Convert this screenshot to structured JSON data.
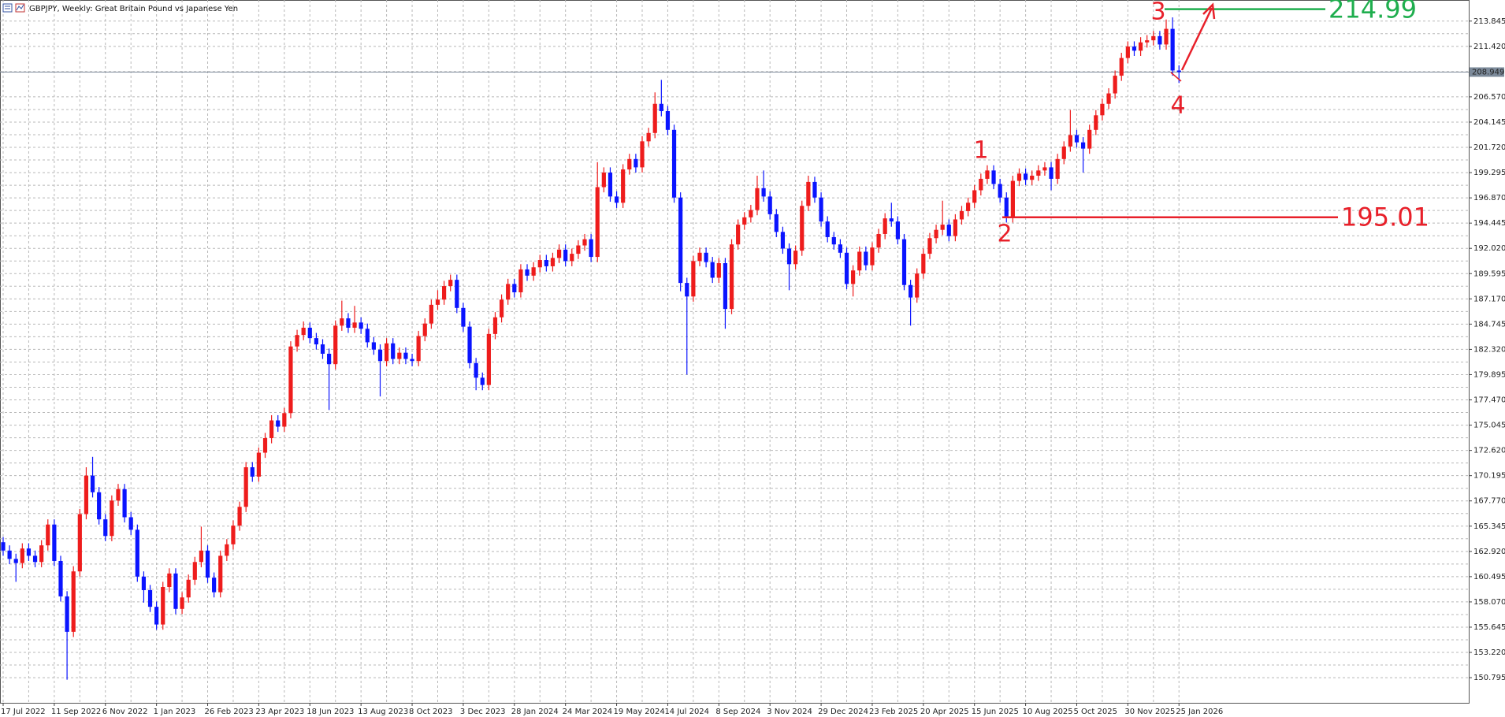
{
  "chart_data": {
    "type": "candlestick",
    "title": "GBPJPY, Weekly:  Great Britain Pound vs Japanese Yen",
    "up_color": "#ee1c1c",
    "down_color": "#0a14ff",
    "grid": true,
    "ylim": [
      148.38,
      215.87
    ],
    "yticks": [
      150.795,
      {
        "value": 153.22,
        "label": "153.220"
      },
      155.645,
      {
        "value": 158.07,
        "label": "158.070"
      },
      160.495,
      {
        "value": 162.92,
        "label": "162.920"
      },
      165.345,
      {
        "value": 167.77,
        "label": "167.770"
      },
      170.195,
      {
        "value": 172.62,
        "label": "172.620"
      },
      175.045,
      {
        "value": 177.47,
        "label": "177.470"
      },
      179.895,
      {
        "value": 182.32,
        "label": "182.320"
      },
      184.745,
      {
        "value": 187.17,
        "label": "187.170"
      },
      189.595,
      {
        "value": 192.02,
        "label": "192.020"
      },
      194.445,
      {
        "value": 196.87,
        "label": "196.870"
      },
      199.295,
      {
        "value": 201.72,
        "label": "201.720"
      },
      204.145,
      {
        "value": 206.57,
        "label": "206.570"
      },
      {
        "value": 211.42,
        "label": "211.420"
      },
      213.845
    ],
    "last_price": 208.949,
    "last_price_color": "#7c8a9a",
    "levels": [
      {
        "value": 195.01,
        "color": "#e8202a"
      },
      {
        "value": 214.99,
        "color": "#1fae4e"
      }
    ],
    "annotations": [
      "1",
      "2",
      "3",
      "4"
    ],
    "categories": [
      "17 Jul 2022",
      null,
      null,
      null,
      null,
      null,
      null,
      null,
      "11 Sep 2022",
      null,
      null,
      null,
      null,
      null,
      null,
      null,
      "6 Nov 2022",
      null,
      null,
      null,
      null,
      null,
      null,
      null,
      "1 Jan 2023",
      null,
      null,
      null,
      null,
      null,
      null,
      null,
      "26 Feb 2023",
      null,
      null,
      null,
      null,
      null,
      null,
      null,
      "23 Apr 2023",
      null,
      null,
      null,
      null,
      null,
      null,
      null,
      "18 Jun 2023",
      null,
      null,
      null,
      null,
      null,
      null,
      null,
      "13 Aug 2023",
      null,
      null,
      null,
      null,
      null,
      null,
      null,
      "8 Oct 2023",
      null,
      null,
      null,
      null,
      null,
      null,
      null,
      "3 Dec 2023",
      null,
      null,
      null,
      null,
      null,
      null,
      null,
      "28 Jan 2024",
      null,
      null,
      null,
      null,
      null,
      null,
      null,
      "24 Mar 2024",
      null,
      null,
      null,
      null,
      null,
      null,
      null,
      "19 May 2024",
      null,
      null,
      null,
      null,
      null,
      null,
      null,
      "14 Jul 2024",
      null,
      null,
      null,
      null,
      null,
      null,
      null,
      "8 Sep 2024",
      null,
      null,
      null,
      null,
      null,
      null,
      null,
      "3 Nov 2024",
      null,
      null,
      null,
      null,
      null,
      null,
      null,
      "29 Dec 2024",
      null,
      null,
      null,
      null,
      null,
      null,
      null,
      "23 Feb 2025",
      null,
      null,
      null,
      null,
      null,
      null,
      null,
      "20 Apr 2025",
      null,
      null,
      null,
      null,
      null,
      null,
      null,
      "15 Jun 2025",
      null,
      null,
      null,
      null,
      null,
      null,
      null,
      "10 Aug 2025",
      null,
      null,
      null,
      null,
      null,
      null,
      null,
      "5 Oct 2025",
      null,
      null,
      null,
      null,
      null,
      null,
      null,
      "30 Nov 2025",
      null,
      null,
      null,
      null,
      null,
      null,
      null,
      "25 Jan 2026"
    ],
    "open": [
      163.8,
      163.0,
      162.2,
      161.8,
      163.2,
      162.5,
      161.9,
      163.5,
      165.5,
      162.0,
      158.6,
      155.2,
      161.0,
      166.5,
      170.2,
      168.6,
      166.0,
      164.4,
      167.8,
      168.9,
      166.2,
      165.0,
      160.5,
      159.2,
      157.6,
      155.9,
      159.5,
      160.8,
      157.4,
      158.5,
      160.2,
      161.9,
      163.0,
      160.4,
      159.0,
      162.5,
      163.6,
      165.4,
      167.2,
      171.0,
      170.1,
      172.4,
      173.8,
      175.5,
      174.9,
      176.2,
      182.6,
      183.7,
      184.4,
      183.4,
      182.8,
      181.9,
      180.9,
      184.6,
      185.3,
      184.4,
      184.9,
      184.3,
      183.0,
      182.3,
      181.2,
      182.9,
      181.4,
      182.0,
      181.4,
      181.2,
      183.6,
      184.8,
      186.6,
      187.1,
      188.4,
      189.0,
      186.3,
      184.5,
      181.0,
      179.6,
      178.9,
      183.8,
      185.4,
      187.1,
      188.6,
      187.8,
      190.0,
      189.4,
      190.2,
      190.9,
      190.3,
      191.1,
      191.9,
      190.8,
      191.5,
      192.3,
      192.9,
      191.2,
      197.9,
      199.3,
      197.0,
      196.4,
      199.6,
      200.6,
      199.8,
      202.3,
      203.1,
      205.9,
      205.2,
      203.4,
      196.9,
      188.7,
      187.4,
      190.8,
      191.6,
      190.7,
      189.2,
      190.6,
      186.2,
      192.4,
      194.3,
      195.0,
      195.7,
      197.8,
      197.0,
      195.3,
      193.6,
      192.0,
      190.5,
      191.8,
      196.1,
      198.4,
      196.9,
      194.6,
      193.1,
      192.4,
      191.6,
      188.6,
      189.9,
      191.7,
      190.4,
      192.1,
      193.4,
      194.9,
      194.6,
      192.9,
      188.5,
      187.3,
      189.6,
      191.5,
      193.0,
      193.8,
      194.3,
      193.2,
      194.8,
      195.6,
      196.4,
      197.6,
      198.7,
      199.5,
      198.2,
      196.9,
      195.0,
      198.5,
      199.2,
      198.6,
      199.0,
      199.5,
      199.8,
      198.7,
      200.6,
      201.8,
      202.9,
      202.2,
      201.6,
      203.4,
      204.8,
      205.9,
      206.9,
      208.6,
      210.3,
      211.4,
      211.0,
      211.8,
      212.0,
      212.4,
      211.6,
      213.1,
      209.1
    ],
    "high": [
      164.3,
      163.5,
      162.7,
      163.7,
      163.7,
      163.0,
      164.0,
      166.0,
      166.0,
      162.5,
      159.1,
      161.5,
      167.0,
      171.0,
      172.0,
      169.1,
      166.5,
      168.3,
      169.4,
      169.4,
      166.7,
      165.5,
      161.0,
      159.7,
      158.1,
      160.0,
      161.3,
      161.3,
      159.0,
      160.7,
      162.4,
      165.3,
      163.5,
      160.9,
      163.0,
      164.1,
      165.9,
      167.7,
      171.5,
      171.5,
      172.9,
      174.3,
      176.0,
      176.0,
      176.7,
      183.1,
      184.2,
      185.0,
      184.9,
      183.9,
      183.3,
      182.4,
      185.1,
      187.0,
      185.8,
      186.5,
      185.4,
      184.8,
      183.5,
      182.8,
      183.4,
      183.4,
      182.5,
      182.5,
      181.9,
      184.1,
      185.3,
      187.1,
      188.0,
      188.9,
      189.5,
      189.5,
      186.8,
      185.0,
      181.5,
      180.1,
      184.3,
      185.9,
      187.6,
      189.1,
      189.1,
      190.5,
      190.5,
      190.7,
      191.4,
      191.4,
      191.6,
      192.4,
      192.4,
      192.0,
      192.8,
      193.4,
      193.4,
      200.3,
      199.8,
      199.8,
      197.5,
      200.1,
      201.1,
      201.1,
      202.8,
      203.6,
      207.0,
      208.2,
      205.7,
      203.9,
      197.4,
      189.2,
      191.3,
      192.1,
      192.1,
      191.2,
      191.1,
      191.1,
      192.9,
      194.8,
      195.5,
      196.2,
      199.0,
      199.5,
      197.5,
      195.8,
      194.1,
      192.5,
      192.3,
      196.6,
      199.0,
      198.9,
      197.4,
      195.1,
      193.6,
      192.9,
      192.1,
      190.4,
      192.2,
      192.2,
      192.6,
      193.9,
      195.4,
      196.4,
      195.1,
      193.4,
      189.0,
      190.1,
      192.0,
      193.5,
      194.3,
      196.6,
      194.8,
      195.3,
      196.1,
      196.9,
      198.1,
      199.2,
      200.0,
      200.0,
      198.7,
      197.4,
      199.0,
      199.7,
      199.7,
      199.5,
      200.0,
      200.3,
      200.3,
      201.1,
      202.3,
      205.3,
      203.4,
      202.7,
      203.9,
      205.3,
      206.4,
      207.4,
      209.1,
      210.8,
      211.9,
      211.9,
      212.3,
      212.5,
      212.9,
      212.9,
      214.0,
      214.2,
      209.6
    ],
    "low": [
      162.5,
      161.7,
      160.0,
      161.3,
      162.0,
      161.4,
      161.4,
      163.0,
      161.5,
      158.1,
      150.6,
      154.7,
      160.5,
      166.0,
      168.1,
      165.5,
      163.9,
      163.9,
      167.3,
      165.7,
      164.5,
      160.0,
      158.0,
      157.1,
      155.4,
      155.4,
      159.0,
      156.9,
      156.9,
      158.0,
      159.7,
      161.4,
      159.9,
      158.5,
      158.5,
      162.0,
      163.1,
      164.9,
      166.7,
      169.6,
      169.6,
      171.9,
      173.3,
      174.4,
      174.4,
      175.7,
      182.1,
      183.2,
      182.9,
      182.3,
      181.4,
      176.5,
      180.4,
      184.1,
      183.9,
      183.9,
      183.8,
      182.5,
      181.8,
      177.8,
      180.7,
      180.9,
      180.9,
      180.9,
      180.7,
      180.7,
      183.1,
      184.3,
      186.1,
      186.6,
      187.9,
      185.8,
      184.0,
      180.5,
      178.4,
      178.4,
      178.4,
      183.3,
      184.9,
      186.6,
      187.3,
      187.3,
      188.9,
      188.9,
      189.7,
      189.8,
      189.8,
      190.6,
      190.3,
      190.3,
      191.0,
      191.8,
      190.7,
      190.7,
      197.4,
      196.5,
      195.9,
      195.9,
      199.1,
      199.3,
      199.3,
      201.8,
      202.6,
      204.7,
      202.9,
      196.4,
      187.9,
      179.9,
      186.9,
      190.3,
      190.2,
      188.7,
      188.7,
      184.3,
      185.7,
      191.9,
      193.8,
      194.5,
      195.2,
      196.5,
      194.8,
      193.1,
      191.5,
      188.0,
      190.0,
      191.3,
      195.6,
      196.4,
      194.1,
      192.6,
      191.9,
      191.1,
      188.1,
      187.4,
      189.4,
      189.9,
      189.9,
      191.6,
      192.9,
      194.1,
      192.4,
      188.0,
      184.6,
      186.8,
      189.1,
      191.0,
      192.5,
      193.3,
      192.7,
      192.7,
      194.3,
      195.1,
      195.9,
      197.1,
      198.2,
      197.7,
      196.4,
      194.5,
      194.5,
      198.0,
      198.1,
      198.1,
      198.5,
      199.0,
      197.6,
      198.2,
      200.1,
      201.3,
      201.7,
      199.3,
      201.1,
      202.9,
      204.3,
      205.4,
      206.4,
      208.1,
      209.8,
      210.5,
      210.5,
      211.3,
      211.5,
      211.1,
      211.1,
      208.6,
      207.9
    ],
    "close": [
      163.0,
      162.2,
      161.8,
      163.2,
      162.5,
      161.9,
      163.5,
      165.5,
      162.0,
      158.6,
      155.2,
      161.0,
      166.5,
      170.2,
      168.6,
      166.0,
      164.4,
      167.8,
      168.9,
      166.2,
      165.0,
      160.5,
      159.2,
      157.6,
      155.9,
      159.5,
      160.8,
      157.4,
      158.5,
      160.2,
      161.9,
      163.0,
      160.4,
      159.0,
      162.5,
      163.6,
      165.4,
      167.2,
      171.0,
      170.1,
      172.4,
      173.8,
      175.5,
      174.9,
      176.2,
      182.6,
      183.7,
      184.4,
      183.4,
      182.8,
      181.9,
      180.9,
      184.6,
      185.3,
      184.4,
      184.9,
      184.3,
      183.0,
      182.3,
      181.2,
      182.9,
      181.4,
      182.0,
      181.4,
      181.2,
      183.6,
      184.8,
      186.6,
      187.1,
      188.4,
      189.0,
      186.3,
      184.5,
      181.0,
      179.6,
      178.9,
      183.8,
      185.4,
      187.1,
      188.6,
      187.8,
      190.0,
      189.4,
      190.2,
      190.9,
      190.3,
      191.1,
      191.9,
      190.8,
      191.5,
      192.3,
      192.9,
      191.2,
      197.9,
      199.3,
      197.0,
      196.4,
      199.6,
      200.6,
      199.8,
      202.3,
      203.1,
      205.9,
      205.2,
      203.4,
      196.9,
      188.7,
      187.4,
      190.8,
      191.6,
      190.7,
      189.2,
      190.6,
      186.2,
      192.4,
      194.3,
      195.0,
      195.7,
      197.8,
      197.0,
      195.3,
      193.6,
      192.0,
      190.5,
      191.8,
      196.1,
      198.4,
      196.9,
      194.6,
      193.1,
      192.4,
      191.6,
      188.6,
      189.9,
      191.7,
      190.4,
      192.1,
      193.4,
      194.9,
      194.6,
      192.9,
      188.5,
      187.3,
      189.6,
      191.5,
      193.0,
      193.8,
      194.3,
      193.2,
      194.8,
      195.6,
      196.4,
      197.6,
      198.7,
      199.5,
      198.2,
      196.9,
      195.0,
      198.5,
      199.2,
      198.6,
      199.0,
      199.5,
      199.8,
      198.7,
      200.6,
      201.8,
      202.9,
      202.2,
      201.6,
      203.4,
      204.8,
      205.9,
      206.9,
      208.6,
      210.3,
      211.4,
      211.0,
      211.8,
      212.0,
      212.4,
      211.6,
      213.1,
      209.1,
      208.949
    ]
  }
}
